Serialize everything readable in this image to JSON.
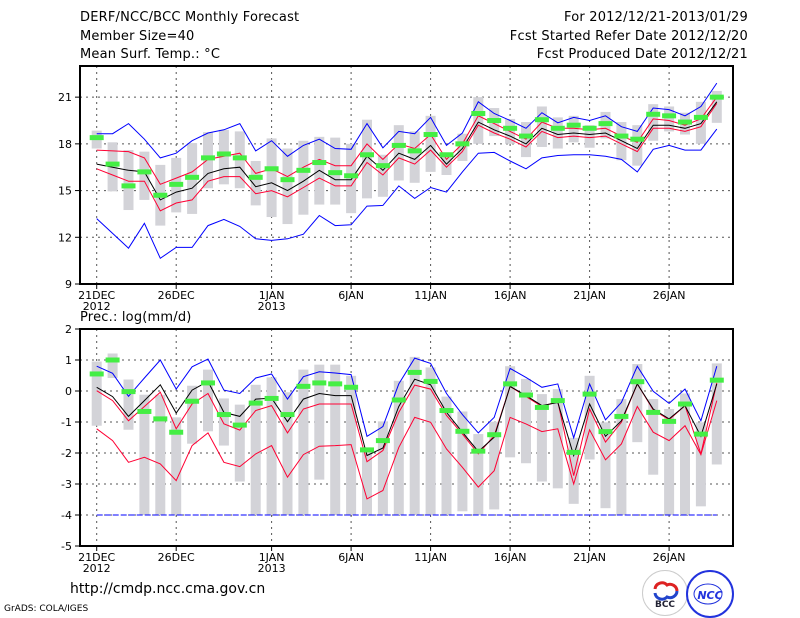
{
  "header": {
    "title": "DERF/NCC/BCC Monthly Forecast",
    "member_size": "Member Size=40",
    "variable": "Mean Surf. Temp.: °C",
    "period": "For 2012/12/21-2013/01/29",
    "started": "Fcst Started Refer Date 2012/12/20",
    "produced": "Fcst Produced Date 2012/12/21"
  },
  "footer": {
    "url": "http://cmdp.ncc.cma.gov.cn",
    "grads": "GrADS: COLA/IGES",
    "logo_bcc": "BCC",
    "logo_ncc": "NCC"
  },
  "colors": {
    "max_min": "#0000ff",
    "spread": "#ff0033",
    "mean": "#000000",
    "marker": "#44ee44",
    "box": "#d3d3d8"
  },
  "chart_data": [
    {
      "type": "line",
      "title": "Mean Surf. Temp.: °C",
      "ylabel": "°C",
      "ylim": [
        9,
        23
      ],
      "yticks": [
        9,
        12,
        15,
        18,
        21
      ],
      "xticks": [
        {
          "day": 0,
          "label": "21DEC",
          "sub": "2012"
        },
        {
          "day": 5,
          "label": "26DEC"
        },
        {
          "day": 11,
          "label": "1JAN",
          "sub": "2013"
        },
        {
          "day": 16,
          "label": "6JAN"
        },
        {
          "day": 21,
          "label": "11JAN"
        },
        {
          "day": 26,
          "label": "16JAN"
        },
        {
          "day": 31,
          "label": "21JAN"
        },
        {
          "day": 36,
          "label": "26JAN"
        }
      ],
      "grid": true,
      "series": [
        {
          "name": "ensemble max",
          "color": "#0000ff",
          "values": [
            18.65,
            18.65,
            19.3,
            18.3,
            17.1,
            17.4,
            18.2,
            18.7,
            18.9,
            19.3,
            17.55,
            18.2,
            17.2,
            17.9,
            18.3,
            17.7,
            17.65,
            19.3,
            17.75,
            18.8,
            18.65,
            19.7,
            17.9,
            18.7,
            20.7,
            19.95,
            19.5,
            19.0,
            20.0,
            19.35,
            19.7,
            19.5,
            19.8,
            19.1,
            18.8,
            20.3,
            20.2,
            19.8,
            20.4,
            21.9
          ]
        },
        {
          "name": "ensemble min",
          "color": "#0000ff",
          "values": [
            13.2,
            12.25,
            11.3,
            12.9,
            10.65,
            11.35,
            11.35,
            12.75,
            13.15,
            12.7,
            11.9,
            11.8,
            11.9,
            12.2,
            13.4,
            12.75,
            12.8,
            14.0,
            14.05,
            15.3,
            14.5,
            15.2,
            14.9,
            16.2,
            17.4,
            17.45,
            16.9,
            16.4,
            17.1,
            17.25,
            17.3,
            17.3,
            17.2,
            17.0,
            16.2,
            17.65,
            17.9,
            17.6,
            17.6,
            18.95
          ]
        },
        {
          "name": "upper spread",
          "color": "#ff0033",
          "values": [
            17.6,
            17.55,
            17.5,
            17.1,
            15.4,
            15.8,
            16.2,
            17.0,
            17.2,
            17.4,
            16.1,
            16.4,
            15.9,
            16.5,
            17.0,
            16.6,
            16.6,
            18.0,
            17.0,
            18.0,
            17.7,
            18.6,
            17.0,
            18.0,
            19.8,
            19.3,
            18.8,
            18.3,
            19.4,
            19.0,
            19.0,
            18.9,
            19.0,
            18.5,
            18.1,
            19.6,
            19.5,
            19.2,
            19.6,
            21.0
          ]
        },
        {
          "name": "lower spread",
          "color": "#ff0033",
          "values": [
            16.4,
            16.0,
            15.6,
            15.6,
            13.7,
            14.2,
            14.4,
            15.6,
            15.9,
            15.9,
            14.8,
            15.0,
            14.6,
            15.2,
            15.8,
            15.3,
            15.3,
            16.8,
            16.0,
            17.1,
            16.7,
            17.6,
            16.5,
            17.5,
            19.2,
            18.7,
            18.3,
            17.8,
            18.8,
            18.4,
            18.5,
            18.4,
            18.5,
            18.0,
            17.5,
            19.0,
            19.0,
            18.8,
            19.1,
            20.6
          ]
        },
        {
          "name": "ensemble mean",
          "color": "#000000",
          "values": [
            16.7,
            16.5,
            16.3,
            16.2,
            14.4,
            14.9,
            15.15,
            16.1,
            16.4,
            16.5,
            15.25,
            15.5,
            15.0,
            15.6,
            16.3,
            15.7,
            15.7,
            17.2,
            16.3,
            17.4,
            17.0,
            17.9,
            16.7,
            17.7,
            19.4,
            18.9,
            18.5,
            18.0,
            19.0,
            18.6,
            18.7,
            18.6,
            18.7,
            18.2,
            17.7,
            19.2,
            19.2,
            19.0,
            19.3,
            20.7
          ]
        }
      ],
      "markers": {
        "name": "green marker",
        "values": [
          18.4,
          16.7,
          15.3,
          16.2,
          14.7,
          15.4,
          15.85,
          17.1,
          17.35,
          17.1,
          15.85,
          16.4,
          15.7,
          16.3,
          16.8,
          16.15,
          15.95,
          17.3,
          16.6,
          17.9,
          17.55,
          18.6,
          17.3,
          18.0,
          19.95,
          19.5,
          19.0,
          18.5,
          19.55,
          19.0,
          19.2,
          19.0,
          19.3,
          18.5,
          18.3,
          19.9,
          19.8,
          19.4,
          19.7,
          21.0
        ]
      },
      "bars": {
        "high": [
          18.85,
          18.1,
          17.6,
          17.5,
          16.65,
          17.1,
          18.05,
          18.75,
          18.9,
          18.8,
          16.9,
          18.35,
          17.7,
          18.2,
          18.45,
          18.4,
          18.0,
          19.55,
          17.3,
          19.2,
          18.8,
          19.8,
          17.35,
          18.65,
          21.0,
          20.3,
          19.6,
          19.4,
          20.4,
          19.7,
          19.8,
          19.2,
          20.05,
          19.4,
          19.2,
          20.55,
          20.4,
          20.0,
          20.7,
          21.4
        ],
        "low": [
          17.7,
          14.95,
          13.75,
          14.4,
          12.75,
          13.6,
          13.5,
          15.15,
          15.4,
          15.15,
          14.05,
          13.3,
          12.85,
          13.45,
          14.1,
          14.1,
          13.55,
          14.5,
          14.6,
          15.65,
          15.5,
          16.2,
          16.0,
          16.9,
          18.0,
          18.5,
          18.0,
          17.15,
          17.8,
          17.7,
          18.1,
          17.75,
          18.35,
          16.95,
          16.6,
          18.2,
          18.8,
          18.6,
          18.0,
          19.35
        ]
      }
    },
    {
      "type": "line",
      "title": "Prec.: log(mm/d)",
      "ylabel": "log(mm/d)",
      "ylim": [
        -5,
        2
      ],
      "yticks": [
        -5,
        -4,
        -3,
        -2,
        -1,
        0,
        1,
        2
      ],
      "xticks": [
        {
          "day": 0,
          "label": "21DEC",
          "sub": "2012"
        },
        {
          "day": 5,
          "label": "26DEC"
        },
        {
          "day": 11,
          "label": "1JAN",
          "sub": "2013"
        },
        {
          "day": 16,
          "label": "6JAN"
        },
        {
          "day": 21,
          "label": "11JAN"
        },
        {
          "day": 26,
          "label": "16JAN"
        },
        {
          "day": 31,
          "label": "21JAN"
        },
        {
          "day": 36,
          "label": "26JAN"
        }
      ],
      "grid": true,
      "series": [
        {
          "name": "ensemble max",
          "color": "#0000ff",
          "values": [
            0.8,
            0.57,
            -0.17,
            0.42,
            1.0,
            0.06,
            0.78,
            1.03,
            0.03,
            -0.08,
            0.42,
            0.55,
            -0.26,
            0.46,
            0.62,
            0.58,
            0.53,
            -1.46,
            -1.15,
            0.23,
            1.06,
            0.89,
            -0.08,
            -0.76,
            -1.35,
            -0.85,
            0.73,
            0.44,
            0.12,
            0.23,
            -1.51,
            0.23,
            -0.93,
            -0.37,
            0.8,
            -0.01,
            -0.4,
            0.06,
            -0.96,
            0.8
          ]
        },
        {
          "name": "ensemble min",
          "color": "#0000ff",
          "values": [
            -4,
            -4,
            -4,
            -4,
            -4,
            -4,
            -4,
            -4,
            -4,
            -4,
            -4,
            -4,
            -4,
            -4,
            -4,
            -4,
            -4,
            -4,
            -4,
            -4,
            -4,
            -4,
            -4,
            -4,
            -4,
            -4,
            -4,
            -4,
            -4,
            -4,
            -4,
            -4,
            -4,
            -4,
            -4,
            -4,
            -4,
            -4,
            -4,
            -4
          ]
        },
        {
          "name": "upper spread",
          "color": "#ff0033",
          "values": [
            0.01,
            -0.31,
            -0.96,
            -0.5,
            -0.04,
            -1.22,
            -0.42,
            -0.08,
            -1.06,
            -1.26,
            -0.63,
            -0.47,
            -1.35,
            -0.58,
            -0.42,
            -0.42,
            -0.42,
            -2.28,
            -1.92,
            -0.69,
            0.19,
            0.06,
            -0.79,
            -1.39,
            -2.03,
            -1.44,
            0.15,
            -0.18,
            -0.5,
            -0.34,
            -2.73,
            -0.58,
            -1.65,
            -1.01,
            0.23,
            -0.61,
            -0.93,
            -0.47,
            -2.03,
            0.26
          ]
        },
        {
          "name": "lower spread",
          "color": "#ff0033",
          "values": [
            -1.22,
            -1.6,
            -2.3,
            -2.14,
            -2.35,
            -2.89,
            -1.76,
            -1.35,
            -2.3,
            -2.44,
            -2.03,
            -1.76,
            -2.78,
            -2.05,
            -1.78,
            -1.76,
            -1.73,
            -3.48,
            -3.21,
            -1.82,
            -0.85,
            -1.01,
            -1.87,
            -2.46,
            -3.1,
            -2.57,
            -0.85,
            -1.06,
            -1.31,
            -1.22,
            -3.0,
            -1.25,
            -2.22,
            -1.71,
            -0.5,
            -1.33,
            -1.6,
            -1.12,
            -2.05,
            -0.31
          ]
        },
        {
          "name": "ensemble mean",
          "color": "#000000",
          "values": [
            0.12,
            -0.18,
            -0.82,
            -0.31,
            0.2,
            -0.71,
            0.03,
            0.31,
            -0.69,
            -0.82,
            -0.26,
            -0.23,
            -0.99,
            -0.26,
            -0.08,
            -0.15,
            -0.15,
            -2.08,
            -1.84,
            -0.5,
            0.38,
            0.2,
            -0.69,
            -1.33,
            -1.95,
            -1.49,
            0.15,
            -0.15,
            -0.47,
            -0.37,
            -2.08,
            -0.42,
            -1.46,
            -0.96,
            0.23,
            -0.58,
            -0.9,
            -0.47,
            -1.46,
            0.23
          ]
        }
      ],
      "markers": {
        "name": "green marker",
        "values": [
          0.55,
          1.0,
          -0.02,
          -0.66,
          -0.9,
          -1.33,
          -0.33,
          0.26,
          -0.76,
          -1.1,
          -0.39,
          -0.24,
          -0.76,
          0.15,
          0.26,
          0.23,
          0.12,
          -1.9,
          -1.6,
          -0.29,
          0.6,
          0.31,
          -0.63,
          -1.3,
          -1.94,
          -1.41,
          0.23,
          -0.13,
          -0.53,
          -0.31,
          -1.98,
          -0.1,
          -1.31,
          -0.82,
          0.3,
          -0.69,
          -0.98,
          -0.42,
          -1.39,
          0.35
        ]
      },
      "bars": {
        "high": [
          0.95,
          1.21,
          0.37,
          -0.12,
          -0.12,
          -0.85,
          0.17,
          0.69,
          -0.24,
          -0.44,
          0.2,
          0.44,
          -0.04,
          0.69,
          0.85,
          0.85,
          0.49,
          -1.82,
          -0.98,
          0.33,
          1.1,
          0.76,
          -0.18,
          -0.66,
          -1.39,
          -0.99,
          0.8,
          0.39,
          -0.1,
          0.06,
          -1.51,
          0.49,
          -1.01,
          -0.26,
          0.87,
          -0.26,
          -0.58,
          -0.08,
          -1.01,
          0.89
        ],
        "low": [
          -1.12,
          0.42,
          -1.25,
          -4,
          -4,
          -4,
          -1.7,
          -1.3,
          -1.76,
          -2.92,
          -4,
          -4,
          -4,
          -4,
          -2.86,
          -4,
          -4,
          -4,
          -4,
          -4,
          -4,
          -4,
          -4,
          -3.88,
          -4,
          -3.82,
          -2.14,
          -2.33,
          -2.92,
          -3.14,
          -3.64,
          -2.21,
          -3.78,
          -4,
          -1.65,
          -2.7,
          -4,
          -4,
          -3.72,
          -2.37
        ]
      }
    }
  ]
}
